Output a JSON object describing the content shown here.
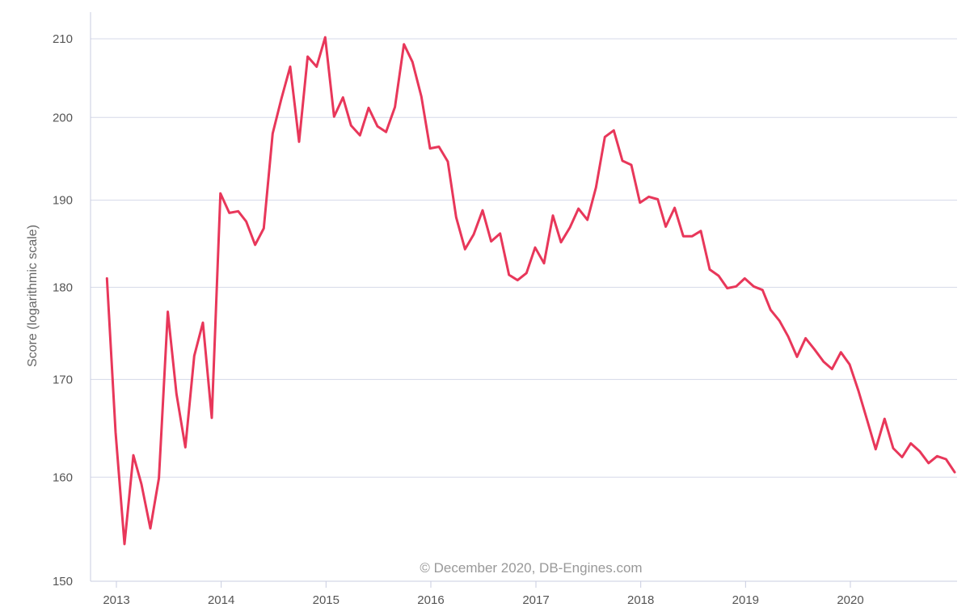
{
  "chart_data": {
    "type": "line",
    "title": "",
    "xlabel": "",
    "ylabel": "Score (logarithmic scale)",
    "yscale": "log",
    "ylim": [
      150,
      212
    ],
    "xlim": [
      "2012-10-20",
      "2020-12-31"
    ],
    "y_ticks": [
      150,
      160,
      170,
      180,
      190,
      200,
      210
    ],
    "x_ticks": [
      "2013",
      "2014",
      "2015",
      "2016",
      "2017",
      "2018",
      "2019",
      "2020"
    ],
    "grid": true,
    "credit": "© December 2020, DB-Engines.com",
    "series": [
      {
        "color": "#e8375a",
        "points": [
          [
            "2012-11",
            181.0
          ],
          [
            "2012-12",
            164.5
          ],
          [
            "2013-01",
            153.5
          ],
          [
            "2013-02",
            162.2
          ],
          [
            "2013-03",
            159.3
          ],
          [
            "2013-04",
            155.0
          ],
          [
            "2013-05",
            159.9
          ],
          [
            "2013-06",
            177.3
          ],
          [
            "2013-07",
            168.5
          ],
          [
            "2013-08",
            163.0
          ],
          [
            "2013-09",
            172.5
          ],
          [
            "2013-10",
            176.1
          ],
          [
            "2013-11",
            166.0
          ],
          [
            "2013-12",
            190.8
          ],
          [
            "2014-01",
            188.5
          ],
          [
            "2014-02",
            188.7
          ],
          [
            "2014-03",
            187.5
          ],
          [
            "2014-04",
            184.8
          ],
          [
            "2014-05",
            186.7
          ],
          [
            "2014-06",
            198.0
          ],
          [
            "2014-07",
            202.3
          ],
          [
            "2014-08",
            206.4
          ],
          [
            "2014-09",
            197.0
          ],
          [
            "2014-10",
            207.7
          ],
          [
            "2014-11",
            206.4
          ],
          [
            "2014-12",
            210.2
          ],
          [
            "2015-01",
            200.1
          ],
          [
            "2015-02",
            202.5
          ],
          [
            "2015-03",
            199.0
          ],
          [
            "2015-04",
            197.8
          ],
          [
            "2015-05",
            201.2
          ],
          [
            "2015-06",
            198.9
          ],
          [
            "2015-07",
            198.2
          ],
          [
            "2015-08",
            201.3
          ],
          [
            "2015-09",
            209.3
          ],
          [
            "2015-10",
            207.0
          ],
          [
            "2015-11",
            202.6
          ],
          [
            "2015-12",
            196.2
          ],
          [
            "2016-01",
            196.4
          ],
          [
            "2016-02",
            194.6
          ],
          [
            "2016-03",
            188.0
          ],
          [
            "2016-04",
            184.3
          ],
          [
            "2016-05",
            186.0
          ],
          [
            "2016-06",
            188.8
          ],
          [
            "2016-07",
            185.2
          ],
          [
            "2016-08",
            186.1
          ],
          [
            "2016-09",
            181.4
          ],
          [
            "2016-10",
            180.8
          ],
          [
            "2016-11",
            181.6
          ],
          [
            "2016-12",
            184.5
          ],
          [
            "2017-01",
            182.7
          ],
          [
            "2017-02",
            188.2
          ],
          [
            "2017-03",
            185.1
          ],
          [
            "2017-04",
            186.8
          ],
          [
            "2017-05",
            189.0
          ],
          [
            "2017-06",
            187.7
          ],
          [
            "2017-07",
            191.5
          ],
          [
            "2017-08",
            197.6
          ],
          [
            "2017-09",
            198.4
          ],
          [
            "2017-10",
            194.7
          ],
          [
            "2017-11",
            194.2
          ],
          [
            "2017-12",
            189.7
          ],
          [
            "2018-01",
            190.4
          ],
          [
            "2018-02",
            190.1
          ],
          [
            "2018-03",
            186.9
          ],
          [
            "2018-04",
            189.1
          ],
          [
            "2018-05",
            185.8
          ],
          [
            "2018-06",
            185.8
          ],
          [
            "2018-07",
            186.4
          ],
          [
            "2018-08",
            182.0
          ],
          [
            "2018-09",
            181.3
          ],
          [
            "2018-10",
            179.9
          ],
          [
            "2018-11",
            180.1
          ],
          [
            "2018-12",
            181.0
          ],
          [
            "2019-01",
            180.1
          ],
          [
            "2019-02",
            179.7
          ],
          [
            "2019-03",
            177.5
          ],
          [
            "2019-04",
            176.3
          ],
          [
            "2019-05",
            174.6
          ],
          [
            "2019-06",
            172.4
          ],
          [
            "2019-07",
            174.4
          ],
          [
            "2019-08",
            173.2
          ],
          [
            "2019-09",
            171.9
          ],
          [
            "2019-10",
            171.1
          ],
          [
            "2019-11",
            172.9
          ],
          [
            "2019-12",
            171.6
          ],
          [
            "2020-01",
            168.8
          ],
          [
            "2020-02",
            165.7
          ],
          [
            "2020-03",
            162.8
          ],
          [
            "2020-04",
            165.9
          ],
          [
            "2020-05",
            162.9
          ],
          [
            "2020-06",
            162.0
          ],
          [
            "2020-07",
            163.4
          ],
          [
            "2020-08",
            162.6
          ],
          [
            "2020-09",
            161.4
          ],
          [
            "2020-10",
            162.1
          ],
          [
            "2020-11",
            161.8
          ],
          [
            "2020-12",
            160.5
          ]
        ]
      }
    ]
  }
}
